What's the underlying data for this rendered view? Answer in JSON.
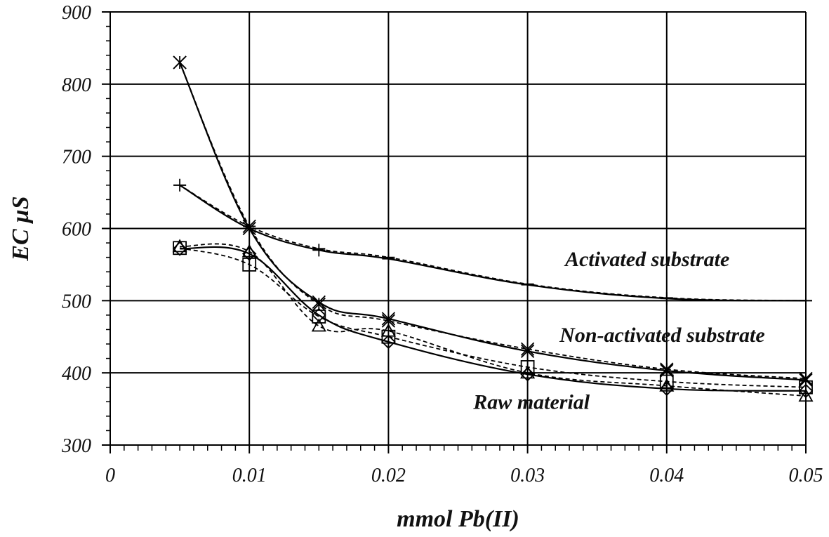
{
  "chart_data": {
    "type": "line",
    "title": "",
    "xlabel": "mmol Pb(II)",
    "ylabel": "EC  µS",
    "xlim": [
      0,
      0.05
    ],
    "ylim": [
      300,
      900
    ],
    "x_ticks": [
      0,
      0.01,
      0.02,
      0.03,
      0.04,
      0.05
    ],
    "x_tick_labels": [
      "0",
      "0.01",
      "0.02",
      "0.03",
      "0.04",
      "0.05"
    ],
    "y_ticks": [
      300,
      400,
      500,
      600,
      700,
      800,
      900
    ],
    "y_tick_labels": [
      "300",
      "400",
      "500",
      "600",
      "700",
      "800",
      "900"
    ],
    "grid": true,
    "x": [
      0.005,
      0.01,
      0.015,
      0.02,
      0.03,
      0.04,
      0.05
    ],
    "annotations": [
      {
        "text": "Activated substrate",
        "x": 0.0327,
        "y": 548
      },
      {
        "text": "Non-activated substrate",
        "x": 0.0323,
        "y": 443
      },
      {
        "text": "Raw material",
        "x": 0.0261,
        "y": 350
      }
    ],
    "series": [
      {
        "group": "Activated substrate",
        "marker": "plus",
        "dash": "solid",
        "values": [
          660,
          600,
          570,
          558,
          522,
          503,
          500
        ]
      },
      {
        "group": "Activated substrate",
        "marker": "minus",
        "dash": "dashed",
        "values": [
          660,
          603,
          572,
          560,
          523,
          504,
          500
        ]
      },
      {
        "group": "Non-activated substrate",
        "marker": "x",
        "dash": "solid",
        "values": [
          830,
          600,
          498,
          475,
          430,
          403,
          390
        ]
      },
      {
        "group": "Non-activated substrate",
        "marker": "star",
        "dash": "dashed",
        "values": [
          830,
          603,
          495,
          472,
          433,
          405,
          392
        ]
      },
      {
        "group": "Raw material",
        "marker": "diamond",
        "dash": "solid",
        "values": [
          572,
          565,
          480,
          443,
          398,
          378,
          375
        ]
      },
      {
        "group": "Raw material",
        "marker": "square",
        "dash": "dashed",
        "values": [
          573,
          550,
          478,
          450,
          408,
          388,
          380
        ]
      },
      {
        "group": "Raw material",
        "marker": "triangle",
        "dash": "dashed",
        "values": [
          575,
          568,
          465,
          458,
          400,
          382,
          368
        ]
      }
    ]
  }
}
